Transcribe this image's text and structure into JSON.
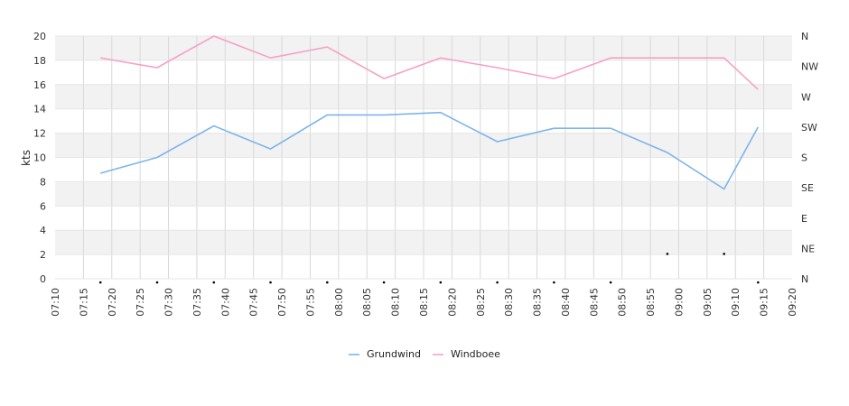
{
  "chart_data": {
    "type": "line",
    "ylabel": "kts",
    "ylim": [
      0,
      20
    ],
    "yticks": [
      "0",
      "2",
      "4",
      "6",
      "8",
      "10",
      "12",
      "14",
      "16",
      "18",
      "20"
    ],
    "y2ticks": [
      "N",
      "NE",
      "E",
      "SE",
      "S",
      "SW",
      "W",
      "NW",
      "N"
    ],
    "xticks": [
      "07:10",
      "07:15",
      "07:20",
      "07:25",
      "07:30",
      "07:35",
      "07:40",
      "07:45",
      "07:50",
      "07:55",
      "08:00",
      "08:05",
      "08:10",
      "08:15",
      "08:20",
      "08:25",
      "08:30",
      "08:35",
      "08:40",
      "08:45",
      "08:50",
      "08:55",
      "09:00",
      "09:05",
      "09:10",
      "09:15",
      "09:20"
    ],
    "grid": true,
    "legend_position": "bottom-center",
    "series": [
      {
        "name": "Grundwind",
        "color": "#7cb5ec",
        "points": [
          [
            "07:18",
            8.7
          ],
          [
            "07:28",
            10.0
          ],
          [
            "07:38",
            12.6
          ],
          [
            "07:48",
            10.7
          ],
          [
            "07:58",
            13.5
          ],
          [
            "08:08",
            13.5
          ],
          [
            "08:18",
            13.7
          ],
          [
            "08:28",
            11.3
          ],
          [
            "08:38",
            12.4
          ],
          [
            "08:48",
            12.4
          ],
          [
            "08:58",
            10.4
          ],
          [
            "09:08",
            7.4
          ],
          [
            "09:14",
            12.5
          ]
        ]
      },
      {
        "name": "Windboee",
        "color": "#f7a1c4",
        "points": [
          [
            "07:18",
            18.2
          ],
          [
            "07:28",
            17.4
          ],
          [
            "07:38",
            20.0
          ],
          [
            "07:48",
            18.2
          ],
          [
            "07:58",
            19.1
          ],
          [
            "08:08",
            16.5
          ],
          [
            "08:18",
            18.2
          ],
          [
            "08:28",
            17.4
          ],
          [
            "08:38",
            16.5
          ],
          [
            "08:48",
            18.2
          ],
          [
            "08:58",
            18.2
          ],
          [
            "09:08",
            18.2
          ],
          [
            "09:14",
            15.6
          ]
        ]
      }
    ],
    "direction_markers": [
      [
        "07:18",
        "N"
      ],
      [
        "07:28",
        "N"
      ],
      [
        "07:38",
        "N"
      ],
      [
        "07:48",
        "N"
      ],
      [
        "07:58",
        "N"
      ],
      [
        "08:08",
        "N"
      ],
      [
        "08:18",
        "N"
      ],
      [
        "08:28",
        "N"
      ],
      [
        "08:38",
        "N"
      ],
      [
        "08:48",
        "N"
      ],
      [
        "08:58",
        "NE"
      ],
      [
        "09:08",
        "NE"
      ],
      [
        "09:14",
        "N"
      ]
    ]
  }
}
